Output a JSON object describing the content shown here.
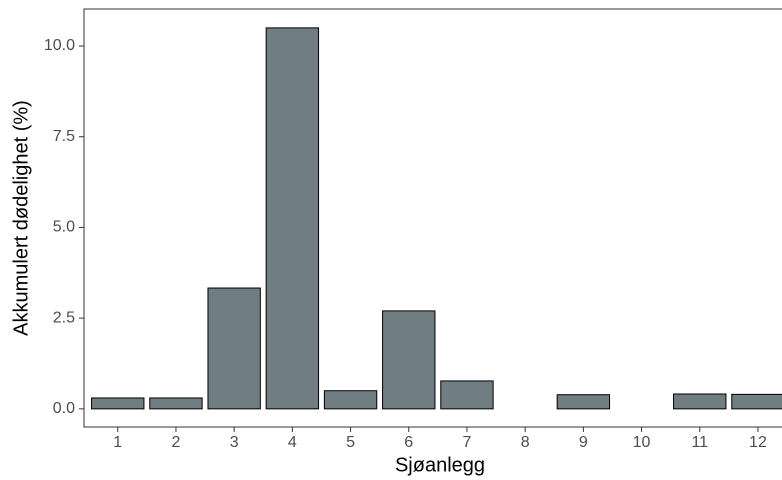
{
  "chart_data": {
    "type": "bar",
    "x_label": "Sjøanlegg",
    "y_label": "Akkumulert dødelighet (%)",
    "categories": [
      "1",
      "2",
      "3",
      "4",
      "5",
      "6",
      "7",
      "8",
      "9",
      "10",
      "11",
      "12"
    ],
    "values": [
      0.3,
      0.3,
      3.33,
      10.5,
      0.5,
      2.7,
      0.77,
      null,
      0.39,
      null,
      0.41,
      0.4
    ],
    "color": "#707d82",
    "ylim": [
      -0.5,
      11.02
    ],
    "yticks": [
      {
        "value": 0,
        "label": "0.0"
      },
      {
        "value": 2.5,
        "label": "2.5"
      },
      {
        "value": 5,
        "label": "5.0"
      },
      {
        "value": 7.5,
        "label": "7.5"
      },
      {
        "value": 10,
        "label": "10.0"
      }
    ],
    "grid": false
  }
}
